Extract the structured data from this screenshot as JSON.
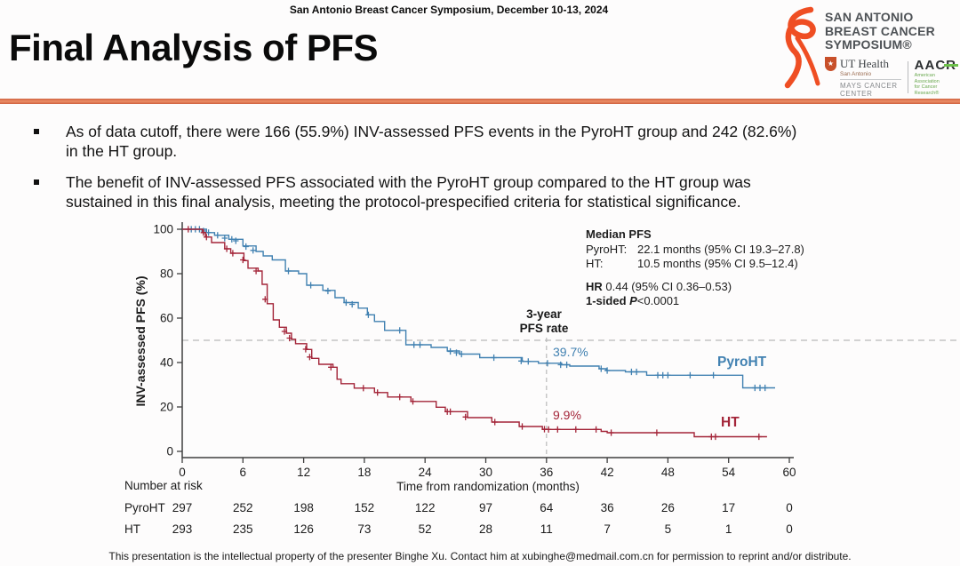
{
  "header": {
    "conference": "San Antonio Breast Cancer Symposium, December 10-13, 2024"
  },
  "title": "Final Analysis of PFS",
  "logo": {
    "line1": "SAN ANTONIO",
    "line2": "BREAST CANCER",
    "line3": "SYMPOSIUM®",
    "ribbon_color": "#ef4e23",
    "ut_health": {
      "star": "★",
      "name": "UT Health",
      "sub": "San Antonio",
      "center": "MAYS CANCER CENTER"
    },
    "aacr": {
      "name": "AACR",
      "sub1": "American Association",
      "sub2": "for Cancer Research®"
    }
  },
  "bullets": [
    {
      "line1": "As of data cutoff, there were 166 (55.9%) INV-assessed PFS events in the PyroHT group and 242 (82.6%)",
      "line2": "in the HT group."
    },
    {
      "line1": "The benefit of INV-assessed PFS associated with the PyroHT group compared to the HT group was",
      "line2": "sustained in this final analysis, meeting the protocol-prespecified criteria for statistical significance."
    }
  ],
  "stats": {
    "title": "Median PFS",
    "rows": [
      {
        "label": "PyroHT:",
        "value": "22.1 months (95% CI 19.3–27.8)"
      },
      {
        "label": "HT:",
        "value": "10.5 months (95% CI 9.5–12.4)"
      }
    ],
    "hr_bold": "HR",
    "hr_rest": " 0.44 (95% CI 0.36–0.53)",
    "p_bold": "1-sided ",
    "p_italic": "P",
    "p_rest": "<0.0001"
  },
  "chart_data": {
    "type": "line",
    "subtype": "kaplan-meier-step",
    "xlabel": "Time from randomization (months)",
    "ylabel": "INV-assessed PFS (%)",
    "xlim": [
      0,
      60
    ],
    "ylim": [
      0,
      100
    ],
    "x_ticks": [
      0,
      6,
      12,
      18,
      24,
      30,
      36,
      42,
      48,
      54,
      60
    ],
    "y_ticks": [
      0,
      20,
      40,
      60,
      80,
      100
    ],
    "grid": false,
    "axis_color": "#3f3f3f",
    "grid_color": "#b9b9b9",
    "reference_lines": {
      "h_dashed_y": 50,
      "v_dashed_x": 36
    },
    "annotations": {
      "threeyear_line1": "3-year",
      "threeyear_line2": "PFS rate",
      "pyroht_rate": "39.7%",
      "ht_rate": "9.9%",
      "pyroht_label": "PyroHT",
      "ht_label": "HT"
    },
    "series": [
      {
        "name": "PyroHT",
        "color": "#4181b1",
        "steps": [
          [
            0,
            100
          ],
          [
            2.4,
            98.5
          ],
          [
            3.2,
            97.3
          ],
          [
            4.6,
            95.5
          ],
          [
            6.0,
            92.5
          ],
          [
            7.3,
            90
          ],
          [
            8.0,
            88
          ],
          [
            8.9,
            86.2
          ],
          [
            10.2,
            81.2
          ],
          [
            11.5,
            80
          ],
          [
            12.3,
            74.8
          ],
          [
            13.9,
            72.5
          ],
          [
            15.1,
            69.2
          ],
          [
            16.0,
            67
          ],
          [
            17.4,
            64.5
          ],
          [
            18.3,
            61.5
          ],
          [
            19.0,
            58.5
          ],
          [
            20.0,
            54.5
          ],
          [
            22.1,
            48
          ],
          [
            24.6,
            46.8
          ],
          [
            26.2,
            45.2
          ],
          [
            27.4,
            43.8
          ],
          [
            29.4,
            42.2
          ],
          [
            33.6,
            40.5
          ],
          [
            35.2,
            39.7
          ],
          [
            37.5,
            39
          ],
          [
            38.3,
            38.4
          ],
          [
            41.2,
            37.2
          ],
          [
            41.9,
            36.4
          ],
          [
            43.8,
            35.8
          ],
          [
            45.9,
            34.3
          ],
          [
            55.4,
            28.6
          ],
          [
            58.6,
            28.6
          ]
        ],
        "censors": [
          [
            0.9,
            100
          ],
          [
            1.3,
            100
          ],
          [
            1.7,
            100
          ],
          [
            2.1,
            99.2
          ],
          [
            2.6,
            98.5
          ],
          [
            3.5,
            97.3
          ],
          [
            4.2,
            96
          ],
          [
            4.9,
            95.5
          ],
          [
            5.3,
            94.8
          ],
          [
            6.3,
            92.2
          ],
          [
            7.0,
            90.5
          ],
          [
            10.5,
            81.2
          ],
          [
            12.7,
            74.8
          ],
          [
            14.4,
            72.2
          ],
          [
            16.2,
            67
          ],
          [
            16.8,
            66.2
          ],
          [
            18.4,
            61.5
          ],
          [
            21.5,
            54.5
          ],
          [
            22.9,
            48
          ],
          [
            23.5,
            48
          ],
          [
            26.5,
            45
          ],
          [
            27.1,
            44.4
          ],
          [
            27.6,
            43.8
          ],
          [
            30.8,
            42.2
          ],
          [
            33.5,
            40.7
          ],
          [
            34.2,
            40.5
          ],
          [
            36.1,
            39.7
          ],
          [
            37.4,
            39
          ],
          [
            38.0,
            39
          ],
          [
            41.4,
            37.2
          ],
          [
            42.0,
            36.4
          ],
          [
            44.4,
            35.8
          ],
          [
            44.9,
            35.8
          ],
          [
            47.0,
            34.3
          ],
          [
            47.5,
            34.3
          ],
          [
            48.0,
            34.3
          ],
          [
            50.2,
            34.3
          ],
          [
            52.5,
            34.3
          ],
          [
            56.6,
            28.6
          ],
          [
            57.1,
            28.6
          ],
          [
            57.6,
            28.6
          ]
        ]
      },
      {
        "name": "HT",
        "color": "#a32438",
        "steps": [
          [
            0,
            100
          ],
          [
            2.0,
            98.5
          ],
          [
            2.3,
            96.5
          ],
          [
            2.9,
            94
          ],
          [
            4.2,
            91.2
          ],
          [
            4.8,
            89.2
          ],
          [
            6.1,
            85.9
          ],
          [
            6.5,
            82.5
          ],
          [
            7.5,
            81.2
          ],
          [
            7.9,
            75.2
          ],
          [
            8.4,
            66.5
          ],
          [
            9.0,
            59.2
          ],
          [
            9.6,
            55.9
          ],
          [
            10.3,
            53.2
          ],
          [
            10.8,
            50.5
          ],
          [
            11.2,
            48.5
          ],
          [
            12.3,
            45.9
          ],
          [
            12.8,
            41.9
          ],
          [
            13.5,
            39.2
          ],
          [
            14.9,
            37.9
          ],
          [
            15.3,
            32.5
          ],
          [
            15.7,
            30.5
          ],
          [
            17.0,
            28.5
          ],
          [
            19.0,
            26.5
          ],
          [
            20.3,
            24.5
          ],
          [
            22.6,
            22.5
          ],
          [
            25.1,
            19.9
          ],
          [
            26.0,
            17.9
          ],
          [
            28.2,
            15.2
          ],
          [
            30.6,
            13.2
          ],
          [
            33.3,
            11.2
          ],
          [
            35.6,
            9.9
          ],
          [
            41.4,
            9.0
          ],
          [
            42.0,
            8.4
          ],
          [
            50.6,
            6.6
          ],
          [
            57.8,
            6.6
          ]
        ],
        "censors": [
          [
            0.6,
            100
          ],
          [
            2.1,
            98.5
          ],
          [
            2.4,
            96.5
          ],
          [
            4.4,
            91.2
          ],
          [
            5.0,
            89.2
          ],
          [
            6.0,
            86.2
          ],
          [
            7.3,
            81.2
          ],
          [
            8.2,
            68.5
          ],
          [
            10.1,
            54
          ],
          [
            10.6,
            51
          ],
          [
            12.2,
            46
          ],
          [
            12.6,
            42.5
          ],
          [
            14.7,
            37.9
          ],
          [
            17.9,
            28.5
          ],
          [
            19.3,
            26.5
          ],
          [
            21.5,
            24.5
          ],
          [
            22.8,
            22.5
          ],
          [
            26.2,
            17.9
          ],
          [
            26.5,
            17.9
          ],
          [
            28.0,
            15.5
          ],
          [
            30.9,
            13.2
          ],
          [
            33.6,
            11.2
          ],
          [
            35.8,
            10
          ],
          [
            36.2,
            9.9
          ],
          [
            37.1,
            9.9
          ],
          [
            38.9,
            9.9
          ],
          [
            40.9,
            9.9
          ],
          [
            42.4,
            8.4
          ],
          [
            46.9,
            8.4
          ],
          [
            52.3,
            6.6
          ],
          [
            52.7,
            6.6
          ],
          [
            57.0,
            6.6
          ]
        ]
      }
    ],
    "number_at_risk": {
      "label": "Number at risk",
      "rows": [
        {
          "name": "PyroHT",
          "values": [
            297,
            252,
            198,
            152,
            122,
            97,
            64,
            36,
            26,
            17,
            0
          ]
        },
        {
          "name": "HT",
          "values": [
            293,
            235,
            126,
            73,
            52,
            28,
            11,
            7,
            5,
            1,
            0
          ]
        }
      ]
    }
  },
  "footer": "This presentation is the intellectual property of the presenter Binghe Xu. Contact him at xubinghe@medmail.com.cn for permission to reprint and/or distribute."
}
